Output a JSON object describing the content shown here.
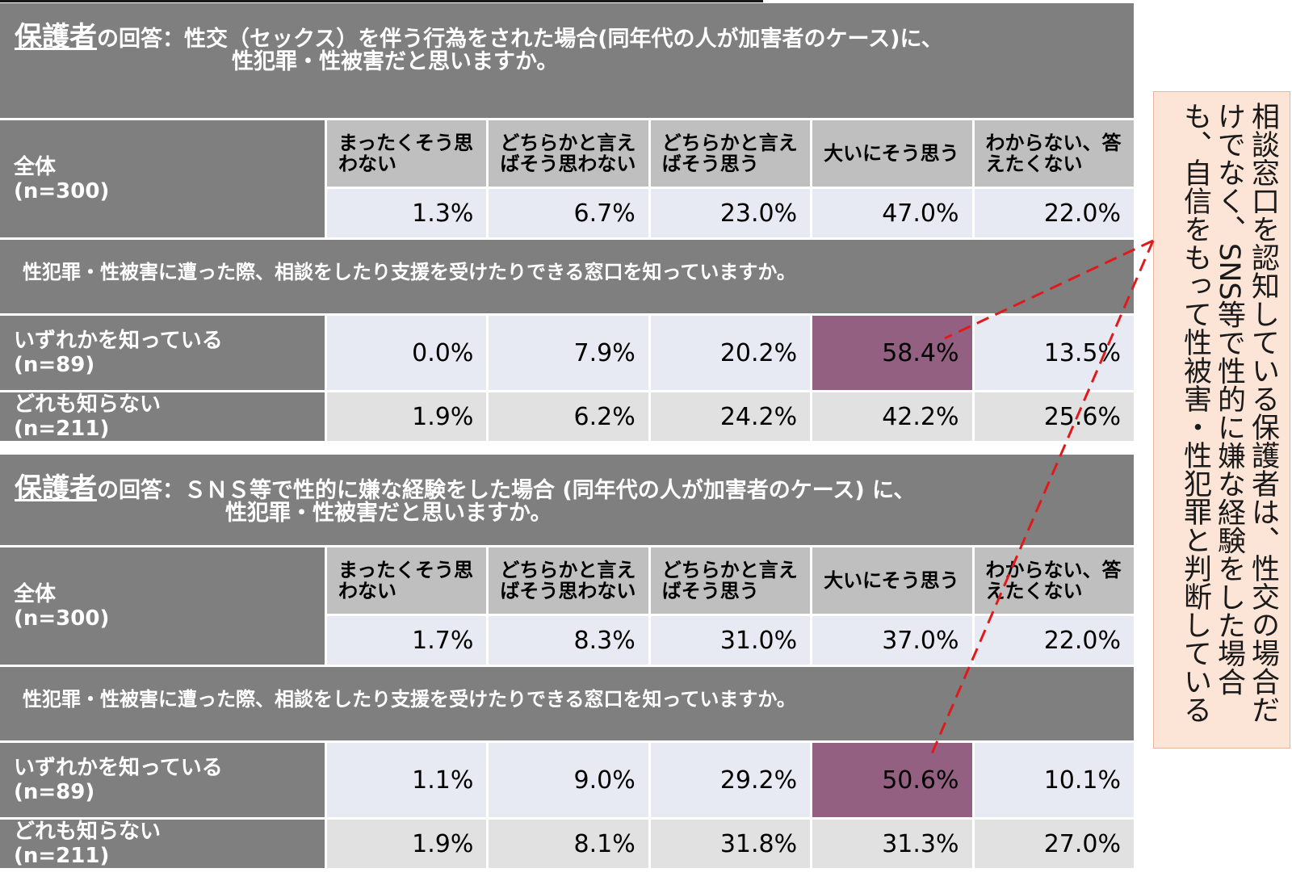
{
  "chart_data": [
    {
      "type": "table",
      "title_emphasis": "保護者",
      "title_line1": "の回答：性交（セックス）を伴う行為をされた場合(同年代の人が加害者のケース)に、",
      "title_line2": "性犯罪・性被害だと思いますか。",
      "columns": [
        "まったくそう思わない",
        "どちらかと言えばそう思わない",
        "どちらかと言えばそう思う",
        "大いにそう思う",
        "わからない、答えたくない"
      ],
      "overall": {
        "label_line1": "全体",
        "label_line2": "(n=300)",
        "values": [
          "1.3%",
          "6.7%",
          "23.0%",
          "47.0%",
          "22.0%"
        ]
      },
      "question": "性犯罪・性被害に遭った際、相談をしたり支援を受けたりできる窓口を知っていますか。",
      "rows": [
        {
          "label_line1": "いずれかを知っている",
          "label_line2": "(n=89)",
          "values": [
            "0.0%",
            "7.9%",
            "20.2%",
            "58.4%",
            "13.5%"
          ],
          "highlight_index": 3
        },
        {
          "label_line1": "どれも知らない",
          "label_line2": "(n=211)",
          "values": [
            "1.9%",
            "6.2%",
            "24.2%",
            "42.2%",
            "25.6%"
          ]
        }
      ]
    },
    {
      "type": "table",
      "title_emphasis": "保護者",
      "title_line1": "の回答：ＳＮＳ等で性的に嫌な経験をした場合 (同年代の人が加害者のケース) に、",
      "title_line2": "性犯罪・性被害だと思いますか。",
      "columns": [
        "まったくそう思わない",
        "どちらかと言えばそう思わない",
        "どちらかと言えばそう思う",
        "大いにそう思う",
        "わからない、答えたくない"
      ],
      "overall": {
        "label_line1": "全体",
        "label_line2": "(n=300)",
        "values": [
          "1.7%",
          "8.3%",
          "31.0%",
          "37.0%",
          "22.0%"
        ]
      },
      "question": "性犯罪・性被害に遭った際、相談をしたり支援を受けたりできる窓口を知っていますか。",
      "rows": [
        {
          "label_line1": "いずれかを知っている",
          "label_line2": "(n=89)",
          "values": [
            "1.1%",
            "9.0%",
            "29.2%",
            "50.6%",
            "10.1%"
          ],
          "highlight_index": 3
        },
        {
          "label_line1": "どれも知らない",
          "label_line2": "(n=211)",
          "values": [
            "1.9%",
            "8.1%",
            "31.8%",
            "31.3%",
            "27.0%"
          ]
        }
      ]
    }
  ],
  "callout": {
    "text": "相談窓口を認知している保護者は、性交の場合だけでなく、SNS等で性的に嫌な経験をした場合も、自信をもって性被害・性犯罪と判断している"
  },
  "colors": {
    "header_bg": "#7f7f7f",
    "column_header_bg": "#bfbfbf",
    "value_bg_a": "#e8eaf3",
    "value_bg_b": "#e1e1e1",
    "highlight": "#946082",
    "callout_bg": "#fce4d6",
    "leader_line": "#e01a1a"
  }
}
